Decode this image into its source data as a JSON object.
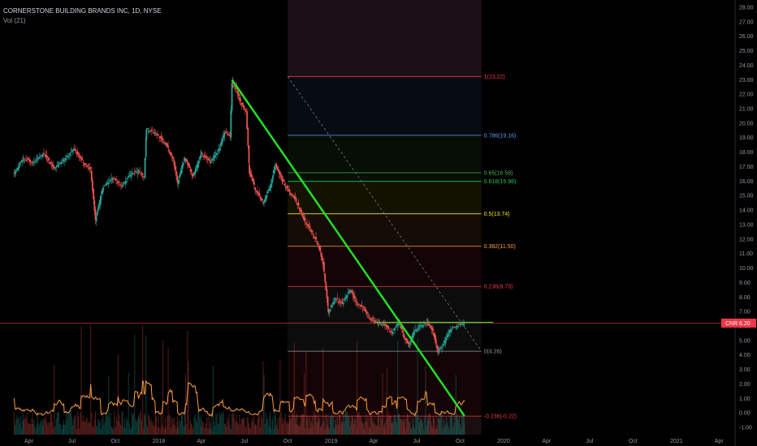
{
  "header": {
    "title": "CORNERSTONE BUILDING BRANDS INC, 1D, NYSE",
    "volume_label": "Vol (21)"
  },
  "colors": {
    "background": "#000000",
    "candle_up": "#26a69a",
    "candle_down": "#ef5350",
    "trendline": "#22e022",
    "price_line": "#f23645",
    "volume_ma": "#ff9e3d"
  },
  "chart_data": {
    "type": "candlestick",
    "symbol": "CNR",
    "last_price": 6.2,
    "last_price_label": "6.20",
    "x_tick_labels": [
      "Apr",
      "Jul",
      "Oct",
      "2018",
      "Apr",
      "Jul",
      "Oct",
      "2019",
      "Apr",
      "Jul",
      "Oct",
      "2020",
      "Apr",
      "Jul",
      "Oct",
      "2021",
      "Apr"
    ],
    "x_tick_dates": [
      "2017-04-01",
      "2017-07-01",
      "2017-10-01",
      "2018-01-01",
      "2018-04-01",
      "2018-07-01",
      "2018-10-01",
      "2019-01-01",
      "2019-04-01",
      "2019-07-01",
      "2019-10-01",
      "2020-01-01",
      "2020-04-01",
      "2020-07-01",
      "2020-10-01",
      "2021-01-01",
      "2021-04-01"
    ],
    "y_tick_labels": [
      "28.00",
      "27.00",
      "26.00",
      "25.00",
      "24.00",
      "23.00",
      "22.00",
      "21.00",
      "20.00",
      "19.00",
      "18.00",
      "17.00",
      "16.00",
      "15.00",
      "14.00",
      "13.00",
      "12.00",
      "11.00",
      "10.00",
      "9.00",
      "8.00",
      "7.00",
      "6.00",
      "5.00",
      "4.00",
      "3.00",
      "2.00",
      "1.00",
      "0.00",
      "-1.00"
    ],
    "ylim": [
      -1.5,
      28.5
    ],
    "price_path": [
      [
        "2017-03-01",
        16.5
      ],
      [
        "2017-03-20",
        17.6
      ],
      [
        "2017-04-10",
        17.2
      ],
      [
        "2017-05-01",
        17.9
      ],
      [
        "2017-05-25",
        16.9
      ],
      [
        "2017-06-15",
        17.5
      ],
      [
        "2017-07-05",
        18.2
      ],
      [
        "2017-07-25",
        17.3
      ],
      [
        "2017-08-10",
        16.8
      ],
      [
        "2017-08-20",
        13.3
      ],
      [
        "2017-09-05",
        15.6
      ],
      [
        "2017-09-25",
        16.2
      ],
      [
        "2017-10-15",
        15.7
      ],
      [
        "2017-11-05",
        16.5
      ],
      [
        "2017-11-20",
        16.7
      ],
      [
        "2017-12-01",
        16.3
      ],
      [
        "2017-12-06",
        19.6
      ],
      [
        "2017-12-25",
        19.3
      ],
      [
        "2018-01-15",
        18.6
      ],
      [
        "2018-02-01",
        17.5
      ],
      [
        "2018-02-10",
        15.9
      ],
      [
        "2018-02-25",
        17.6
      ],
      [
        "2018-03-15",
        16.3
      ],
      [
        "2018-04-01",
        17.9
      ],
      [
        "2018-04-20",
        17.3
      ],
      [
        "2018-05-10",
        18.3
      ],
      [
        "2018-05-20",
        19.4
      ],
      [
        "2018-06-01",
        19.1
      ],
      [
        "2018-06-05",
        22.8
      ],
      [
        "2018-06-15",
        22.3
      ],
      [
        "2018-06-25",
        21.3
      ],
      [
        "2018-07-05",
        20.8
      ],
      [
        "2018-07-12",
        16.6
      ],
      [
        "2018-07-25",
        15.4
      ],
      [
        "2018-08-10",
        14.5
      ],
      [
        "2018-08-25",
        15.6
      ],
      [
        "2018-09-05",
        17.1
      ],
      [
        "2018-09-20",
        16.0
      ],
      [
        "2018-10-05",
        15.2
      ],
      [
        "2018-10-20",
        14.6
      ],
      [
        "2018-11-05",
        13.3
      ],
      [
        "2018-11-20",
        12.6
      ],
      [
        "2018-12-05",
        11.6
      ],
      [
        "2018-12-15",
        10.3
      ],
      [
        "2018-12-26",
        7.0
      ],
      [
        "2019-01-10",
        7.9
      ],
      [
        "2019-01-25",
        7.5
      ],
      [
        "2019-02-10",
        8.5
      ],
      [
        "2019-02-25",
        7.6
      ],
      [
        "2019-03-10",
        7.2
      ],
      [
        "2019-03-25",
        6.5
      ],
      [
        "2019-04-10",
        6.2
      ],
      [
        "2019-04-25",
        6.1
      ],
      [
        "2019-05-10",
        5.5
      ],
      [
        "2019-05-25",
        6.3
      ],
      [
        "2019-06-05",
        5.2
      ],
      [
        "2019-06-15",
        4.6
      ],
      [
        "2019-06-25",
        5.6
      ],
      [
        "2019-07-10",
        6.0
      ],
      [
        "2019-07-25",
        6.2
      ],
      [
        "2019-08-05",
        5.6
      ],
      [
        "2019-08-15",
        4.2
      ],
      [
        "2019-08-25",
        4.6
      ],
      [
        "2019-09-10",
        5.8
      ],
      [
        "2019-09-25",
        6.0
      ],
      [
        "2019-10-10",
        6.2
      ]
    ],
    "fibonacci": {
      "start_date": "2018-10-01",
      "end_date": "2019-11-15",
      "levels": [
        {
          "label": "1(23.22)",
          "value": 23.22,
          "color": "#f23645"
        },
        {
          "label": "0.786(19.16)",
          "value": 19.16,
          "color": "#5b9cf6"
        },
        {
          "label": "0.65(16.58)",
          "value": 16.58,
          "color": "#4caf50"
        },
        {
          "label": "0.618(15.98)",
          "value": 15.98,
          "color": "#22c55e"
        },
        {
          "label": "0.5(13.74)",
          "value": 13.74,
          "color": "#f7e600"
        },
        {
          "label": "0.382(11.50)",
          "value": 11.5,
          "color": "#ff9e3d"
        },
        {
          "label": "0.236(8.73)",
          "value": 8.73,
          "color": "#f23645"
        },
        {
          "label": "0(4.26)",
          "value": 4.26,
          "color": "#9598a1"
        },
        {
          "label": "-0.236(-0.22)",
          "value": -0.22,
          "color": "#f23645"
        }
      ]
    },
    "trendlines": [
      {
        "from": [
          "2018-06-05",
          23.0
        ],
        "to": [
          "2019-10-10",
          -0.2
        ],
        "color": "#22e022",
        "width": 2.5
      },
      {
        "from": [
          "2019-04-01",
          6.25
        ],
        "to": [
          "2019-12-10",
          6.25
        ],
        "color": "#22e022",
        "width": 1.2
      }
    ],
    "diagonal_guide": {
      "from": [
        "2018-10-01",
        23.22
      ],
      "to": [
        "2019-11-15",
        4.26
      ]
    }
  }
}
